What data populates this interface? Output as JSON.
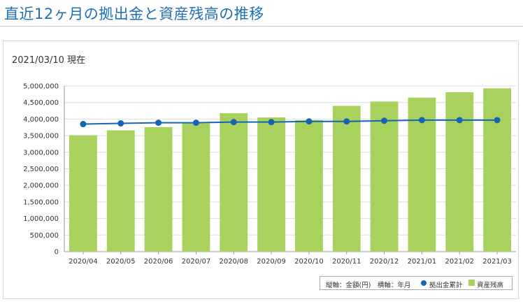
{
  "page": {
    "title": "直近12ヶ月の拠出金と資産残高の推移",
    "as_of": "2021/03/10 現在"
  },
  "legend": {
    "axis_note": "縦軸：金額(円)　横軸：年月",
    "line_label": "拠出金累計",
    "bar_label": "資産残高"
  },
  "colors": {
    "title": "#1f6fb5",
    "bar": "#a9d15d",
    "line": "#1565b5",
    "grid": "#dddddd"
  },
  "chart_data": {
    "type": "bar",
    "categories": [
      "2020/04",
      "2020/05",
      "2020/06",
      "2020/07",
      "2020/08",
      "2020/09",
      "2020/10",
      "2020/11",
      "2020/12",
      "2021/01",
      "2021/02",
      "2021/03"
    ],
    "series": [
      {
        "name": "資産残高",
        "type": "bar",
        "values": [
          3510000,
          3660000,
          3760000,
          3870000,
          4180000,
          4050000,
          3970000,
          4400000,
          4530000,
          4650000,
          4810000,
          4930000
        ]
      },
      {
        "name": "拠出金累計",
        "type": "line",
        "values": [
          3850000,
          3870000,
          3890000,
          3890000,
          3910000,
          3910000,
          3930000,
          3930000,
          3950000,
          3970000,
          3970000,
          3970000
        ]
      }
    ],
    "ylim": [
      0,
      5000000
    ],
    "yticks": [
      0,
      500000,
      1000000,
      1500000,
      2000000,
      2500000,
      3000000,
      3500000,
      4000000,
      4500000,
      5000000
    ],
    "ytick_labels": [
      "0",
      "500,000",
      "1,000,000",
      "1,500,000",
      "2,000,000",
      "2,500,000",
      "3,000,000",
      "3,500,000",
      "4,000,000",
      "4,500,000",
      "5,000,000"
    ],
    "grid": true,
    "legend_position": "bottom-right"
  }
}
